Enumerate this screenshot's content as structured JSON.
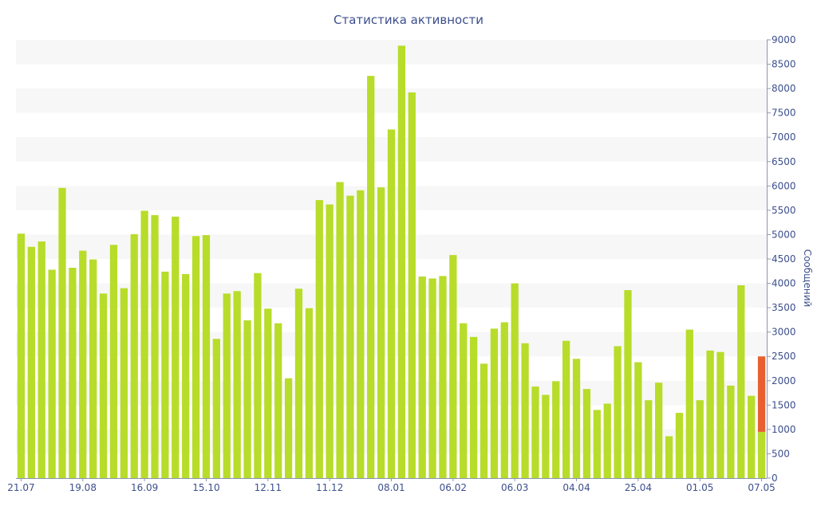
{
  "chart_data": {
    "type": "bar",
    "title": "Статистика активности",
    "ylabel": "Сообщений",
    "ylim": [
      0,
      9000
    ],
    "y_ticks": [
      0,
      500,
      1000,
      1500,
      2000,
      2500,
      3000,
      3500,
      4000,
      4500,
      5000,
      5500,
      6000,
      6500,
      7000,
      7500,
      8000,
      8500,
      9000
    ],
    "x_tick_labels": [
      "21.07",
      "19.08",
      "16.09",
      "15.10",
      "12.11",
      "11.12",
      "08.01",
      "06.02",
      "06.03",
      "04.04",
      "25.04",
      "01.05",
      "07.05"
    ],
    "x_tick_indices": [
      0,
      6,
      12,
      18,
      24,
      30,
      36,
      42,
      48,
      54,
      60,
      66,
      72
    ],
    "values": [
      5020,
      4750,
      4860,
      4280,
      5960,
      4320,
      4670,
      4490,
      3790,
      4790,
      3900,
      5010,
      5490,
      5400,
      4240,
      5370,
      4190,
      4970,
      4990,
      2860,
      3790,
      3840,
      3240,
      4210,
      3480,
      3180,
      2050,
      3890,
      3490,
      5710,
      5620,
      6080,
      5800,
      5910,
      8260,
      5970,
      7160,
      8880,
      7920,
      4140,
      4100,
      4150,
      4580,
      3180,
      2900,
      2350,
      3070,
      3200,
      4000,
      2770,
      1880,
      1710,
      1990,
      2820,
      2450,
      1830,
      1400,
      1530,
      2710,
      3860,
      2380,
      1600,
      1960,
      860,
      1340,
      3050,
      1600,
      2620,
      2590,
      1900,
      3960,
      1690,
      2500
    ],
    "highlight": {
      "index": 72,
      "from": 950,
      "to": 2500
    },
    "colors": {
      "bar": "#b8dc2a",
      "highlight": "#e86030",
      "band": "#f7f7f7",
      "text": "#3c4f8c"
    },
    "grid": "alternating horizontal bands"
  }
}
